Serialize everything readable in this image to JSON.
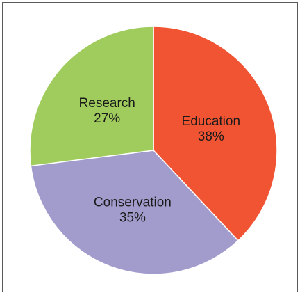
{
  "chart_data": {
    "type": "pie",
    "categories": [
      "Education",
      "Conservation",
      "Research"
    ],
    "values": [
      38,
      35,
      27
    ],
    "value_labels": [
      "38%",
      "35%",
      "27%"
    ],
    "colors": [
      "#f05433",
      "#a29ccd",
      "#9fcc5d"
    ],
    "start_angle_deg": 0,
    "direction": "clockwise",
    "slice_border_color": "#ffffff",
    "title": "",
    "legend": "none"
  }
}
